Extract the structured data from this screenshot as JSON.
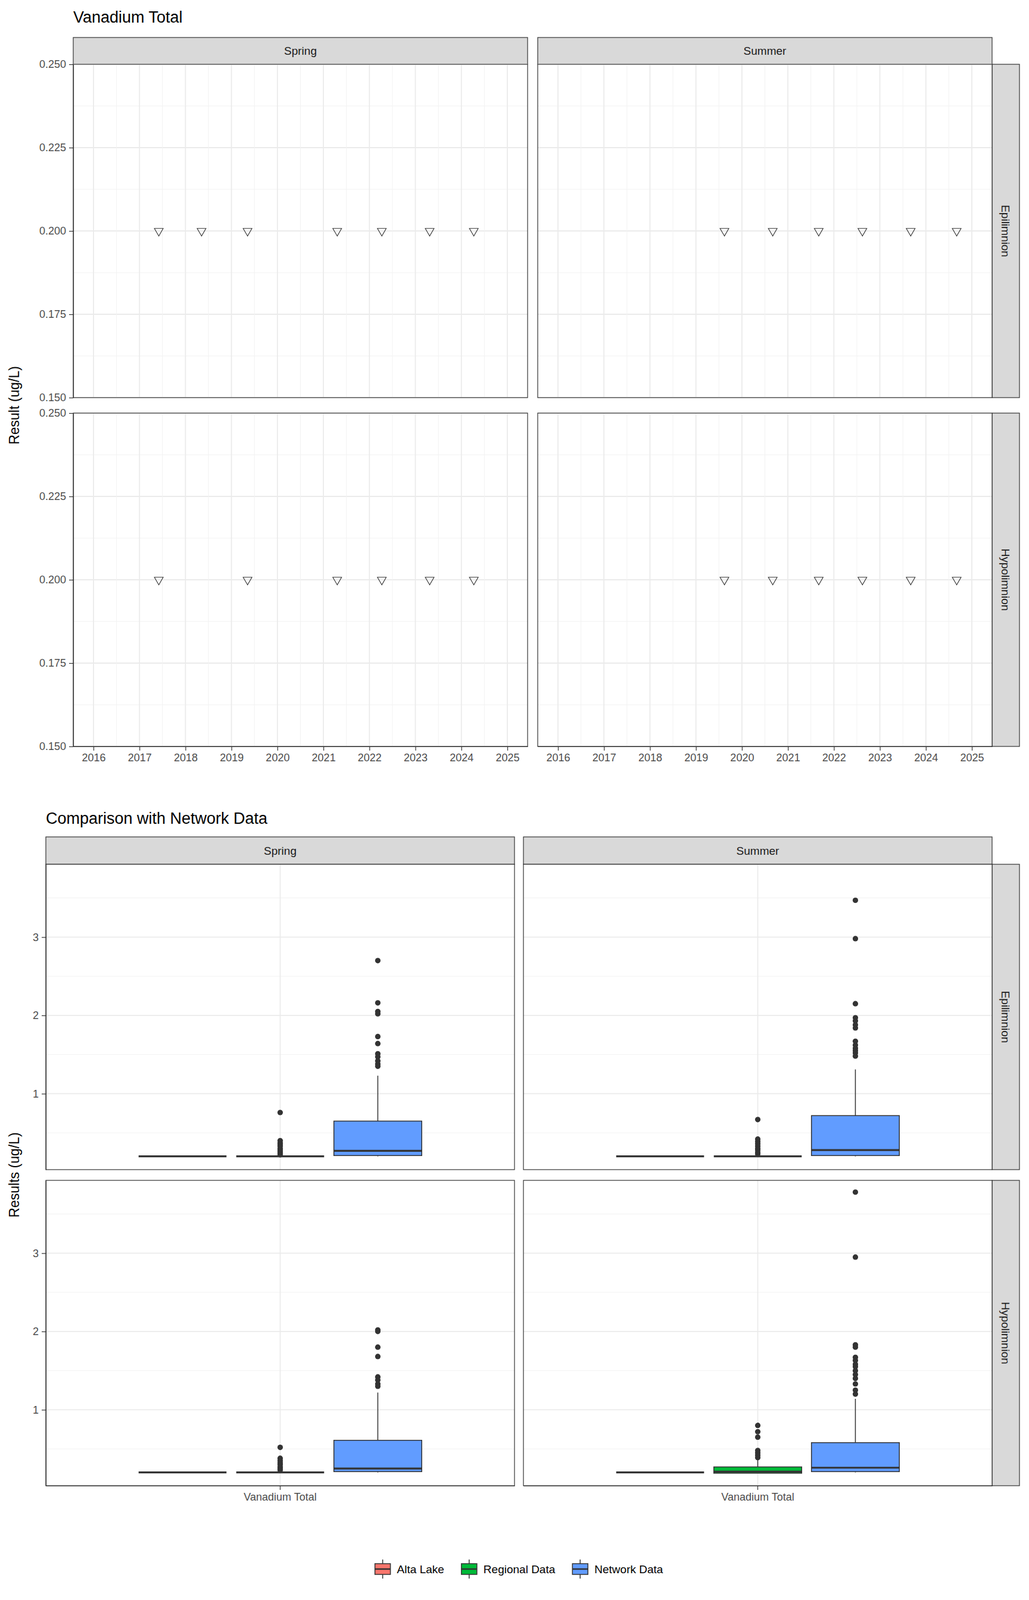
{
  "chart_data": [
    {
      "type": "scatter",
      "title": "Vanadium Total",
      "y_label": "Result (ug/L)",
      "columns": [
        "Spring",
        "Summer"
      ],
      "rows": [
        "Epilimnion",
        "Hypolimnion"
      ],
      "xlim": [
        2015.56,
        2025.44
      ],
      "xticks": [
        2016,
        2017,
        2018,
        2019,
        2020,
        2021,
        2022,
        2023,
        2024,
        2025
      ],
      "ylim": [
        0.15,
        0.25
      ],
      "yticks": [
        {
          "value": 0.15,
          "label": "0.150"
        },
        0.175,
        {
          "value": 0.2,
          "label": "0.200"
        },
        0.225,
        {
          "value": 0.25,
          "label": "0.250"
        }
      ],
      "grid": true,
      "marker": "triangle-down",
      "panels": [
        [
          {
            "x": [
              2017.42,
              2018.35,
              2019.35,
              2021.3,
              2022.27,
              2023.31,
              2024.27
            ],
            "values": [
              0.2,
              0.2,
              0.2,
              0.2,
              0.2,
              0.2,
              0.2
            ]
          },
          {
            "x": [
              2019.62,
              2020.67,
              2021.67,
              2022.62,
              2023.67,
              2024.67
            ],
            "values": [
              0.2,
              0.2,
              0.2,
              0.2,
              0.2,
              0.2
            ]
          }
        ],
        [
          {
            "x": [
              2017.42,
              2019.35,
              2021.3,
              2022.27,
              2023.31,
              2024.27
            ],
            "values": [
              0.2,
              0.2,
              0.2,
              0.2,
              0.2,
              0.2
            ]
          },
          {
            "x": [
              2019.62,
              2020.67,
              2021.67,
              2022.62,
              2023.67,
              2024.67
            ],
            "values": [
              0.2,
              0.2,
              0.2,
              0.2,
              0.2,
              0.2
            ]
          }
        ]
      ]
    },
    {
      "type": "box",
      "title": "Comparison with Network Data",
      "y_label": "Results (ug/L)",
      "columns": [
        "Spring",
        "Summer"
      ],
      "rows": [
        "Epilimnion",
        "Hypolimnion"
      ],
      "categories": [
        "Vanadium Total"
      ],
      "ylim": [
        0.03,
        3.93
      ],
      "yticks": [
        1,
        2,
        3
      ],
      "grid": true,
      "legend": "bottom",
      "series": [
        {
          "name": "Alta Lake",
          "color": "#F8766D"
        },
        {
          "name": "Regional Data",
          "color": "#00BA38"
        },
        {
          "name": "Network Data",
          "color": "#619CFF"
        }
      ],
      "panels": [
        [
          [
            [
              {
                "min": 0.2,
                "q1": 0.2,
                "median": 0.2,
                "q3": 0.2,
                "max": 0.2,
                "outliers": []
              },
              {
                "min": 0.2,
                "q1": 0.2,
                "median": 0.2,
                "q3": 0.2,
                "max": 0.2,
                "outliers": [
                  0.76,
                  0.4,
                  0.37,
                  0.35,
                  0.33,
                  0.3,
                  0.28,
                  0.26,
                  0.24,
                  0.22
                ]
              },
              {
                "min": 0.2,
                "q1": 0.21,
                "median": 0.27,
                "q3": 0.65,
                "max": 1.23,
                "outliers": [
                  2.7,
                  2.16,
                  2.05,
                  2.02,
                  1.73,
                  1.64,
                  1.51,
                  1.47,
                  1.42,
                  1.38,
                  1.35
                ]
              }
            ]
          ],
          [
            [
              {
                "min": 0.2,
                "q1": 0.2,
                "median": 0.2,
                "q3": 0.2,
                "max": 0.2,
                "outliers": []
              },
              {
                "min": 0.2,
                "q1": 0.2,
                "median": 0.2,
                "q3": 0.2,
                "max": 0.2,
                "outliers": [
                  0.67,
                  0.42,
                  0.39,
                  0.36,
                  0.33,
                  0.3,
                  0.28,
                  0.25,
                  0.23
                ]
              },
              {
                "min": 0.2,
                "q1": 0.21,
                "median": 0.28,
                "q3": 0.72,
                "max": 1.31,
                "outliers": [
                  3.47,
                  2.98,
                  2.15,
                  1.97,
                  1.93,
                  1.88,
                  1.84,
                  1.67,
                  1.62,
                  1.58,
                  1.55,
                  1.52,
                  1.48
                ]
              }
            ]
          ]
        ],
        [
          [
            [
              {
                "min": 0.2,
                "q1": 0.2,
                "median": 0.2,
                "q3": 0.2,
                "max": 0.2,
                "outliers": []
              },
              {
                "min": 0.2,
                "q1": 0.2,
                "median": 0.2,
                "q3": 0.2,
                "max": 0.2,
                "outliers": [
                  0.52,
                  0.38,
                  0.35,
                  0.32,
                  0.3,
                  0.27,
                  0.25,
                  0.23
                ]
              },
              {
                "min": 0.2,
                "q1": 0.21,
                "median": 0.25,
                "q3": 0.61,
                "max": 1.22,
                "outliers": [
                  2.02,
                  2,
                  1.8,
                  1.68,
                  1.42,
                  1.38,
                  1.33,
                  1.3
                ]
              }
            ]
          ],
          [
            [
              {
                "min": 0.2,
                "q1": 0.2,
                "median": 0.2,
                "q3": 0.2,
                "max": 0.2,
                "outliers": []
              },
              {
                "min": 0.19,
                "q1": 0.19,
                "median": 0.21,
                "q3": 0.27,
                "max": 0.36,
                "outliers": [
                  0.8,
                  0.72,
                  0.65,
                  0.48,
                  0.45,
                  0.42,
                  0.39
                ]
              },
              {
                "min": 0.2,
                "q1": 0.21,
                "median": 0.26,
                "q3": 0.58,
                "max": 1.14,
                "outliers": [
                  3.78,
                  2.95,
                  1.83,
                  1.8,
                  1.67,
                  1.63,
                  1.58,
                  1.55,
                  1.5,
                  1.45,
                  1.4,
                  1.33,
                  1.25,
                  1.2
                ]
              }
            ]
          ]
        ]
      ]
    }
  ]
}
